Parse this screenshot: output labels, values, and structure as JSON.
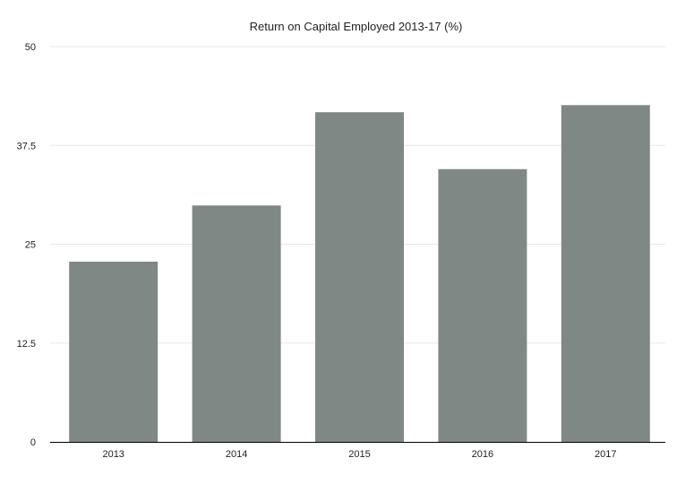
{
  "chart_data": {
    "type": "bar",
    "title": "Return on Capital Employed 2013-17 (%)",
    "categories": [
      "2013",
      "2014",
      "2015",
      "2016",
      "2017"
    ],
    "values": [
      22.8,
      29.9,
      41.7,
      34.5,
      42.6
    ],
    "xlabel": "",
    "ylabel": "",
    "ylim": [
      0,
      50
    ],
    "yticks": [
      0,
      12.5,
      25,
      37.5,
      50
    ],
    "ytick_labels": [
      "0",
      "12.5",
      "25",
      "37.5",
      "50"
    ],
    "grid": true,
    "legend": "none",
    "colors": {
      "bar": "#808885",
      "grid": "#e8e8e8",
      "axis": "#000000"
    }
  }
}
